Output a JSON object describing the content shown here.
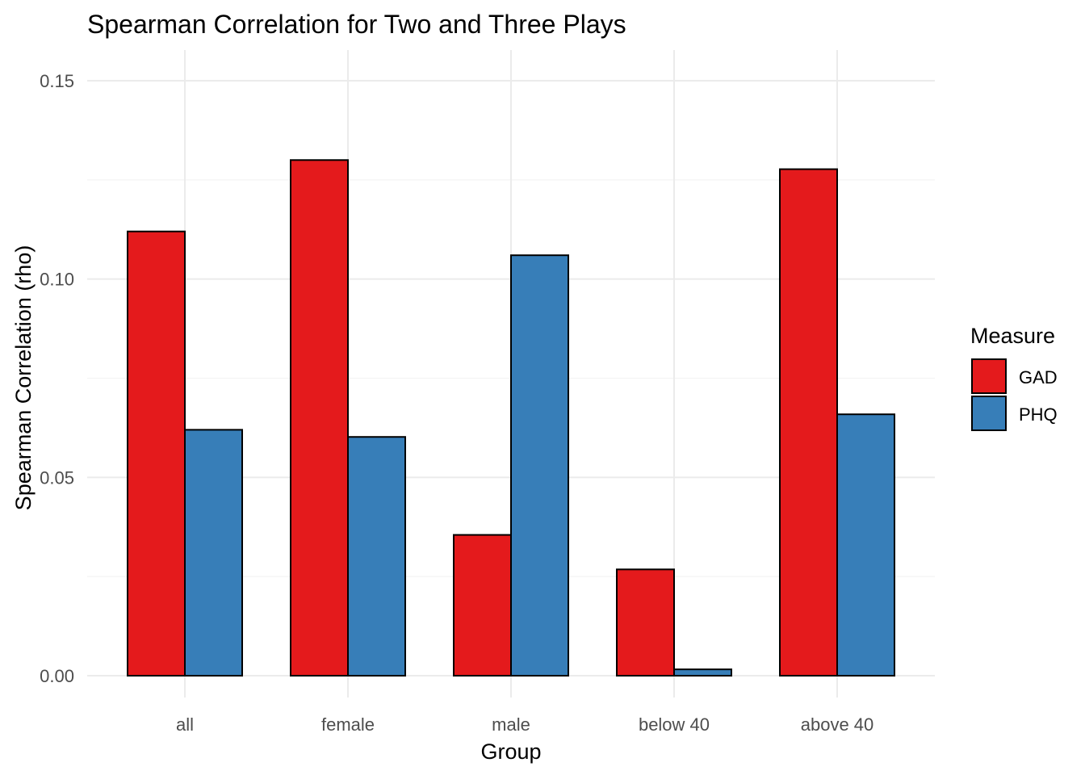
{
  "chart_data": {
    "type": "bar",
    "title": "Spearman Correlation for Two and Three Plays",
    "xlabel": "Group",
    "ylabel": "Spearman Correlation (rho)",
    "categories": [
      "all",
      "female",
      "male",
      "below 40",
      "above 40"
    ],
    "series": [
      {
        "name": "GAD",
        "color": "#e41a1c",
        "values": [
          0.112,
          0.13,
          0.0355,
          0.0268,
          0.1277
        ]
      },
      {
        "name": "PHQ",
        "color": "#377eb8",
        "values": [
          0.062,
          0.0602,
          0.106,
          0.0016,
          0.0659
        ]
      }
    ],
    "ylim": [
      0,
      0.155
    ],
    "yticks": [
      0.0,
      0.05,
      0.1,
      0.15
    ],
    "ytick_labels": [
      "0.00",
      "0.05",
      "0.10",
      "0.15"
    ],
    "grid": true,
    "legend": {
      "title": "Measure",
      "position": "right"
    }
  }
}
